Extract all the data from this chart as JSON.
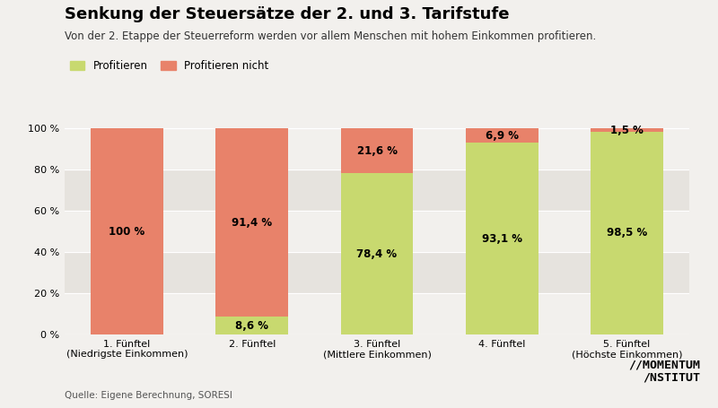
{
  "title": "Senkung der Steuersätze der 2. und 3. Tarifstufe",
  "subtitle": "Von der 2. Etappe der Steuerreform werden vor allem Menschen mit hohem Einkommen profitieren.",
  "categories": [
    "1. Fünftel\n(Niedrigste Einkommen)",
    "2. Fünftel",
    "3. Fünftel\n(Mittlere Einkommen)",
    "4. Fünftel",
    "5. Fünftel\n(Höchste Einkommen)"
  ],
  "profitieren": [
    0.0,
    8.6,
    78.4,
    93.1,
    98.5
  ],
  "profitieren_nicht": [
    100.0,
    91.4,
    21.6,
    6.9,
    1.5
  ],
  "labels_profitieren": [
    "",
    "8,6 %",
    "78,4 %",
    "93,1 %",
    "98,5 %"
  ],
  "labels_nicht": [
    "100 %",
    "91,4 %",
    "21,6 %",
    "6,9 %",
    "1,5 %"
  ],
  "color_profitieren": "#c8d96f",
  "color_nicht": "#e8826a",
  "background_color": "#f2f0ed",
  "stripe_color": "#e6e3de",
  "source_text": "Quelle: Eigene Berechnung, SORESI",
  "legend_label_1": "Profitieren",
  "legend_label_2": "Profitieren nicht",
  "ytick_vals": [
    0,
    20,
    40,
    60,
    80,
    100
  ],
  "ylabel_ticks": [
    "0 %",
    "20 %",
    "40 %",
    "60 %",
    "80 %",
    "100 %"
  ]
}
